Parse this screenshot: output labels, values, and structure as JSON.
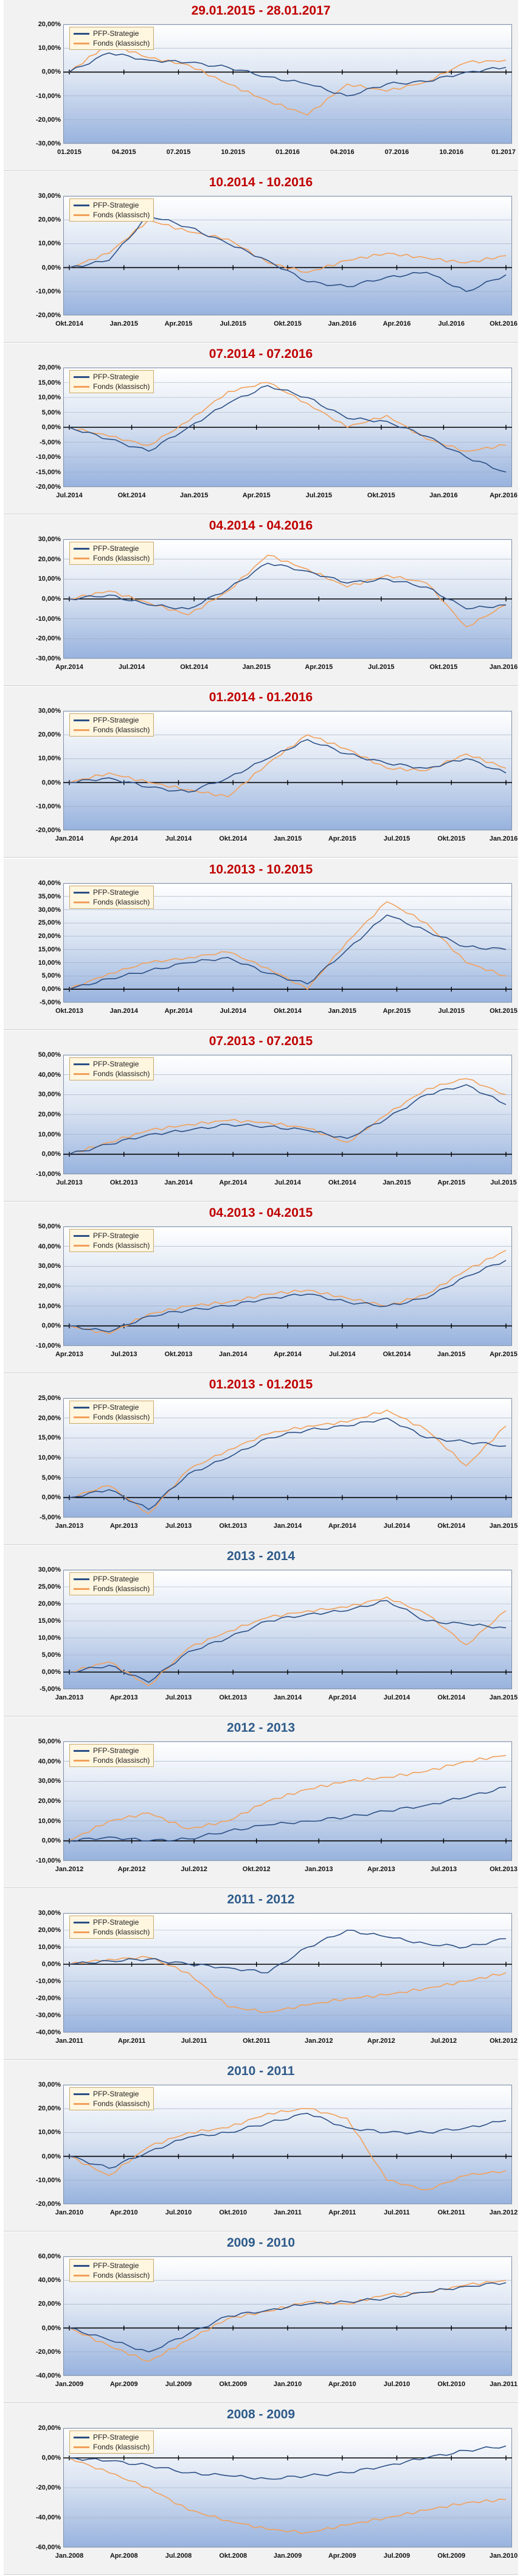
{
  "colors": {
    "strategy": "#2b4f86",
    "fonds": "#f2a05a",
    "zero": "#000000",
    "red_title": "#c00000",
    "blue_title": "#2e5b8a"
  },
  "chart_data": [
    {
      "type": "line",
      "title": "29.01.2015 - 28.01.2017",
      "title_color": "red",
      "legend": [
        "PFP-Strategie",
        "Fonds (klassisch)"
      ],
      "yticks": [
        "20,00%",
        "10,00%",
        "0,00%",
        "-10,00%",
        "-20,00%",
        "-30,00%"
      ],
      "ylim": [
        -30,
        20
      ],
      "xticks": [
        "01.2015",
        "04.2015",
        "07.2015",
        "10.2015",
        "01.2016",
        "04.2016",
        "07.2016",
        "10.2016",
        "01.2017"
      ],
      "series": [
        {
          "name": "PFP-Strategie",
          "values": [
            0,
            8,
            5,
            4,
            2,
            -2,
            -5,
            -10,
            -5,
            -4,
            0,
            2
          ]
        },
        {
          "name": "Fonds (klassisch)",
          "values": [
            0,
            12,
            6,
            3,
            -5,
            -12,
            -18,
            -5,
            -8,
            -4,
            4,
            5
          ]
        }
      ]
    },
    {
      "type": "line",
      "title": "10.2014 - 10.2016",
      "title_color": "red",
      "legend": [
        "PFP-Strategie",
        "Fonds (klassisch)"
      ],
      "yticks": [
        "30,00%",
        "20,00%",
        "10,00%",
        "0,00%",
        "-10,00%",
        "-20,00%"
      ],
      "ylim": [
        -20,
        30
      ],
      "xticks": [
        "Okt.2014",
        "Jan.2015",
        "Apr.2015",
        "Jul.2015",
        "Okt.2015",
        "Jan.2016",
        "Apr.2016",
        "Jul.2016",
        "Okt.2016"
      ],
      "series": [
        {
          "name": "PFP-Strategie",
          "values": [
            0,
            3,
            22,
            17,
            10,
            3,
            -6,
            -8,
            -4,
            -2,
            -10,
            -3
          ]
        },
        {
          "name": "Fonds (klassisch)",
          "values": [
            0,
            6,
            20,
            15,
            12,
            2,
            -2,
            3,
            6,
            4,
            2,
            5
          ]
        }
      ]
    },
    {
      "type": "line",
      "title": "07.2014 - 07.2016",
      "title_color": "red",
      "legend": [
        "PFP-Strategie",
        "Fonds (klassisch)"
      ],
      "yticks": [
        "20,00%",
        "15,00%",
        "10,00%",
        "5,00%",
        "0,00%",
        "-5,00%",
        "-10,00%",
        "-15,00%",
        "-20,00%"
      ],
      "ylim": [
        -20,
        20
      ],
      "xticks": [
        "Jul.2014",
        "Okt.2014",
        "Jan.2015",
        "Apr.2015",
        "Jul.2015",
        "Okt.2015",
        "Jan.2016",
        "Apr.2016"
      ],
      "series": [
        {
          "name": "PFP-Strategie",
          "values": [
            0,
            -4,
            -8,
            0,
            8,
            14,
            10,
            3,
            2,
            -3,
            -10,
            -15
          ]
        },
        {
          "name": "Fonds (klassisch)",
          "values": [
            0,
            -3,
            -6,
            2,
            12,
            15,
            8,
            0,
            4,
            -4,
            -8,
            -6
          ]
        }
      ]
    },
    {
      "type": "line",
      "title": "04.2014 - 04.2016",
      "title_color": "red",
      "legend": [
        "PFP-Strategie",
        "Fonds (klassisch)"
      ],
      "yticks": [
        "30,00%",
        "20,00%",
        "10,00%",
        "0,00%",
        "-10,00%",
        "-20,00%",
        "-30,00%"
      ],
      "ylim": [
        -30,
        30
      ],
      "xticks": [
        "Apr.2014",
        "Jul.2014",
        "Okt.2014",
        "Jan.2015",
        "Apr.2015",
        "Jul.2015",
        "Okt.2015",
        "Jan.2016"
      ],
      "series": [
        {
          "name": "PFP-Strategie",
          "values": [
            0,
            2,
            -3,
            -5,
            5,
            18,
            14,
            8,
            10,
            6,
            -5,
            -3
          ]
        },
        {
          "name": "Fonds (klassisch)",
          "values": [
            0,
            4,
            -2,
            -8,
            4,
            22,
            15,
            6,
            12,
            8,
            -14,
            -3
          ]
        }
      ]
    },
    {
      "type": "line",
      "title": "01.2014 - 01.2016",
      "title_color": "red",
      "legend": [
        "PFP-Strategie",
        "Fonds (klassisch)"
      ],
      "yticks": [
        "30,00%",
        "20,00%",
        "10,00%",
        "0,00%",
        "-10,00%",
        "-20,00%"
      ],
      "ylim": [
        -20,
        30
      ],
      "xticks": [
        "Jan.2014",
        "Apr.2014",
        "Jul.2014",
        "Okt.2014",
        "Jan.2015",
        "Apr.2015",
        "Jul.2015",
        "Okt.2015",
        "Jan.2016"
      ],
      "series": [
        {
          "name": "PFP-Strategie",
          "values": [
            0,
            2,
            -2,
            -4,
            2,
            10,
            18,
            12,
            8,
            6,
            10,
            4
          ]
        },
        {
          "name": "Fonds (klassisch)",
          "values": [
            0,
            4,
            0,
            -3,
            -6,
            8,
            20,
            14,
            6,
            5,
            12,
            6
          ]
        }
      ]
    },
    {
      "type": "line",
      "title": "10.2013 - 10.2015",
      "title_color": "red",
      "legend": [
        "PFP-Strategie",
        "Fonds (klassisch)"
      ],
      "yticks": [
        "40,00%",
        "35,00%",
        "30,00%",
        "25,00%",
        "20,00%",
        "15,00%",
        "10,00%",
        "5,00%",
        "0,00%",
        "-5,00%"
      ],
      "ylim": [
        -5,
        40
      ],
      "xticks": [
        "Okt.2013",
        "Jan.2014",
        "Apr.2014",
        "Jul.2014",
        "Okt.2014",
        "Jan.2015",
        "Apr.2015",
        "Jul.2015",
        "Okt.2015"
      ],
      "series": [
        {
          "name": "PFP-Strategie",
          "values": [
            0,
            4,
            7,
            10,
            12,
            6,
            2,
            15,
            28,
            22,
            16,
            15
          ]
        },
        {
          "name": "Fonds (klassisch)",
          "values": [
            0,
            6,
            10,
            12,
            14,
            8,
            0,
            18,
            33,
            25,
            10,
            5
          ]
        }
      ]
    },
    {
      "type": "line",
      "title": "07.2013 - 07.2015",
      "title_color": "red",
      "legend": [
        "PFP-Strategie",
        "Fonds (klassisch)"
      ],
      "yticks": [
        "50,00%",
        "40,00%",
        "30,00%",
        "20,00%",
        "10,00%",
        "0,00%",
        "-10,00%"
      ],
      "ylim": [
        -10,
        50
      ],
      "xticks": [
        "Jul.2013",
        "Okt.2013",
        "Jan.2014",
        "Apr.2014",
        "Jul.2014",
        "Okt.2014",
        "Jan.2015",
        "Apr.2015",
        "Jul.2015"
      ],
      "series": [
        {
          "name": "PFP-Strategie",
          "values": [
            0,
            5,
            10,
            12,
            15,
            14,
            12,
            8,
            18,
            30,
            35,
            25
          ]
        },
        {
          "name": "Fonds (klassisch)",
          "values": [
            0,
            6,
            12,
            15,
            17,
            16,
            13,
            6,
            20,
            33,
            38,
            30
          ]
        }
      ]
    },
    {
      "type": "line",
      "title": "04.2013 - 04.2015",
      "title_color": "red",
      "legend": [
        "PFP-Strategie",
        "Fonds (klassisch)"
      ],
      "yticks": [
        "50,00%",
        "40,00%",
        "30,00%",
        "20,00%",
        "10,00%",
        "0,00%",
        "-10,00%"
      ],
      "ylim": [
        -10,
        50
      ],
      "xticks": [
        "Apr.2013",
        "Jul.2013",
        "Okt.2013",
        "Jan.2014",
        "Apr.2014",
        "Jul.2014",
        "Okt.2014",
        "Jan.2015",
        "Apr.2015"
      ],
      "series": [
        {
          "name": "PFP-Strategie",
          "values": [
            0,
            -3,
            5,
            8,
            10,
            14,
            16,
            12,
            10,
            14,
            25,
            33
          ]
        },
        {
          "name": "Fonds (klassisch)",
          "values": [
            0,
            -4,
            6,
            10,
            12,
            16,
            18,
            14,
            10,
            16,
            28,
            38
          ]
        }
      ]
    },
    {
      "type": "line",
      "title": "01.2013 - 01.2015",
      "title_color": "red",
      "legend": [
        "PFP-Strategie",
        "Fonds (klassisch)"
      ],
      "yticks": [
        "25,00%",
        "20,00%",
        "15,00%",
        "10,00%",
        "5,00%",
        "0,00%",
        "-5,00%"
      ],
      "ylim": [
        -5,
        25
      ],
      "xticks": [
        "Jan.2013",
        "Apr.2013",
        "Jul.2013",
        "Okt.2013",
        "Jan.2014",
        "Apr.2014",
        "Jul.2014",
        "Okt.2014",
        "Jan.2015"
      ],
      "series": [
        {
          "name": "PFP-Strategie",
          "values": [
            0,
            2,
            -3,
            6,
            10,
            15,
            17,
            18,
            20,
            15,
            14,
            13
          ]
        },
        {
          "name": "Fonds (klassisch)",
          "values": [
            0,
            3,
            -4,
            7,
            12,
            16,
            18,
            19,
            22,
            17,
            8,
            18
          ]
        }
      ]
    },
    {
      "type": "line",
      "title": "2013 - 2014",
      "title_color": "blue",
      "legend": [
        "PFP-Strategie",
        "Fonds (klassisch)"
      ],
      "yticks": [
        "30,00%",
        "25,00%",
        "20,00%",
        "15,00%",
        "10,00%",
        "5,00%",
        "0,00%",
        "-5,00%"
      ],
      "ylim": [
        -5,
        30
      ],
      "xticks": [
        "Jan.2013",
        "Apr.2013",
        "Jul.2013",
        "Okt.2013",
        "Jan.2014",
        "Apr.2014",
        "Jul.2014",
        "Okt.2014",
        "Jan.2015"
      ],
      "series": [
        {
          "name": "PFP-Strategie",
          "values": [
            0,
            2,
            -3,
            6,
            10,
            15,
            17,
            18,
            21,
            15,
            14,
            13
          ]
        },
        {
          "name": "Fonds (klassisch)",
          "values": [
            0,
            3,
            -4,
            7,
            12,
            16,
            18,
            19,
            22,
            17,
            8,
            18
          ]
        }
      ]
    },
    {
      "type": "line",
      "title": "2012 - 2013",
      "title_color": "blue",
      "legend": [
        "PFP-Strategie",
        "Fonds (klassisch)"
      ],
      "yticks": [
        "50,00%",
        "40,00%",
        "30,00%",
        "20,00%",
        "10,00%",
        "0,00%",
        "-10,00%"
      ],
      "ylim": [
        -10,
        50
      ],
      "xticks": [
        "Jan.2012",
        "Apr.2012",
        "Jul.2012",
        "Okt.2012",
        "Jan.2013",
        "Apr.2013",
        "Jul.2013",
        "Okt.2013"
      ],
      "series": [
        {
          "name": "PFP-Strategie",
          "values": [
            0,
            2,
            0,
            1,
            5,
            8,
            10,
            12,
            15,
            18,
            22,
            27
          ]
        },
        {
          "name": "Fonds (klassisch)",
          "values": [
            0,
            10,
            14,
            6,
            10,
            20,
            26,
            30,
            32,
            35,
            40,
            43
          ]
        }
      ]
    },
    {
      "type": "line",
      "title": "2011 - 2012",
      "title_color": "blue",
      "legend": [
        "PFP-Strategie",
        "Fonds (klassisch)"
      ],
      "yticks": [
        "30,00%",
        "20,00%",
        "10,00%",
        "0,00%",
        "-10,00%",
        "-20,00%",
        "-30,00%",
        "-40,00%"
      ],
      "ylim": [
        -40,
        30
      ],
      "xticks": [
        "Jan.2011",
        "Apr.2011",
        "Jul.2011",
        "Okt.2011",
        "Jan.2012",
        "Apr.2012",
        "Jul.2012",
        "Okt.2012"
      ],
      "series": [
        {
          "name": "PFP-Strategie",
          "values": [
            0,
            2,
            3,
            0,
            -2,
            -5,
            10,
            20,
            16,
            12,
            10,
            15
          ]
        },
        {
          "name": "Fonds (klassisch)",
          "values": [
            0,
            3,
            4,
            -5,
            -25,
            -28,
            -24,
            -20,
            -18,
            -14,
            -10,
            -5
          ]
        }
      ]
    },
    {
      "type": "line",
      "title": "2010 - 2011",
      "title_color": "blue",
      "legend": [
        "PFP-Strategie",
        "Fonds (klassisch)"
      ],
      "yticks": [
        "30,00%",
        "20,00%",
        "10,00%",
        "0,00%",
        "-10,00%",
        "-20,00%"
      ],
      "ylim": [
        -20,
        30
      ],
      "xticks": [
        "Jan.2010",
        "Apr.2010",
        "Jul.2010",
        "Okt.2010",
        "Jan.2011",
        "Apr.2011",
        "Jul.2011",
        "Okt.2011",
        "Jan.2012"
      ],
      "series": [
        {
          "name": "PFP-Strategie",
          "values": [
            0,
            -5,
            2,
            8,
            10,
            14,
            18,
            12,
            10,
            10,
            12,
            15
          ]
        },
        {
          "name": "Fonds (klassisch)",
          "values": [
            0,
            -8,
            4,
            10,
            12,
            18,
            20,
            16,
            -10,
            -14,
            -8,
            -6
          ]
        }
      ]
    },
    {
      "type": "line",
      "title": "2009 - 2010",
      "title_color": "blue",
      "legend": [
        "PFP-Strategie",
        "Fonds (klassisch)"
      ],
      "yticks": [
        "60,00%",
        "40,00%",
        "20,00%",
        "0,00%",
        "-20,00%",
        "-40,00%"
      ],
      "ylim": [
        -40,
        60
      ],
      "xticks": [
        "Jan.2009",
        "Apr.2009",
        "Jul.2009",
        "Okt.2009",
        "Jan.2010",
        "Apr.2010",
        "Jul.2010",
        "Okt.2010",
        "Jan.2011"
      ],
      "series": [
        {
          "name": "PFP-Strategie",
          "values": [
            0,
            -10,
            -20,
            -5,
            10,
            15,
            20,
            22,
            25,
            30,
            35,
            38
          ]
        },
        {
          "name": "Fonds (klassisch)",
          "values": [
            0,
            -15,
            -28,
            -10,
            8,
            14,
            22,
            20,
            28,
            30,
            36,
            40
          ]
        }
      ]
    },
    {
      "type": "line",
      "title": "2008 - 2009",
      "title_color": "blue",
      "legend": [
        "PFP-Strategie",
        "Fonds (klassisch)"
      ],
      "yticks": [
        "20,00%",
        "0,00%",
        "-20,00%",
        "-40,00%",
        "-60,00%"
      ],
      "ylim": [
        -60,
        20
      ],
      "xticks": [
        "Jan.2008",
        "Apr.2008",
        "Jul.2008",
        "Okt.2008",
        "Jan.2009",
        "Apr.2009",
        "Jul.2009",
        "Okt.2009",
        "Jan.2010"
      ],
      "series": [
        {
          "name": "PFP-Strategie",
          "values": [
            0,
            -2,
            -5,
            -10,
            -12,
            -14,
            -12,
            -10,
            -5,
            0,
            5,
            8
          ]
        },
        {
          "name": "Fonds (klassisch)",
          "values": [
            0,
            -10,
            -20,
            -35,
            -42,
            -48,
            -50,
            -45,
            -40,
            -35,
            -30,
            -28
          ]
        }
      ]
    }
  ]
}
